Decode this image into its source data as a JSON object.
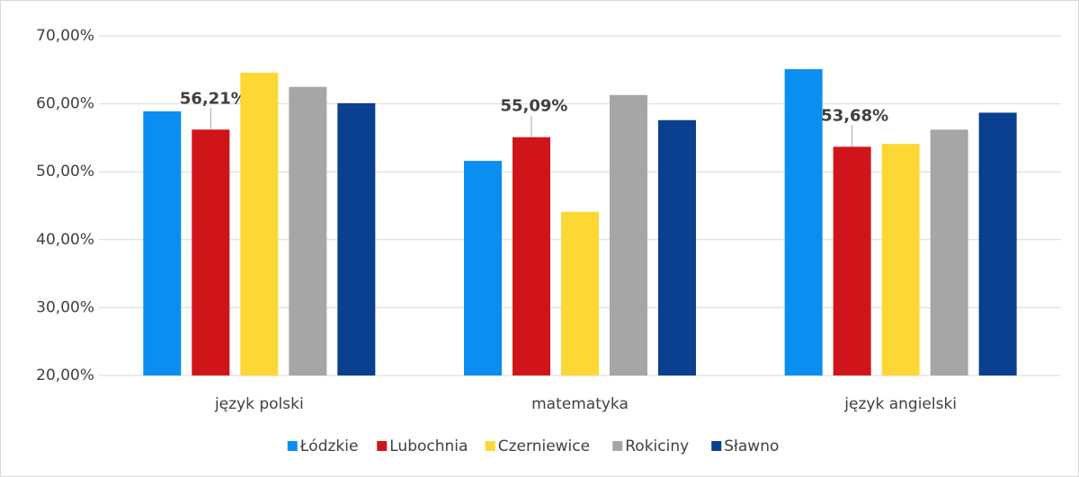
{
  "chart_data": {
    "type": "bar",
    "categories": [
      "język polski",
      "matematyka",
      "język angielski"
    ],
    "series": [
      {
        "name": "Łódzkie",
        "color": "#0a8ef0",
        "values": [
          58.9,
          51.6,
          65.1
        ]
      },
      {
        "name": "Lubochnia",
        "color": "#d0151a",
        "values": [
          56.21,
          55.09,
          53.68
        ],
        "value_labels": [
          "56,21%",
          "55,09%",
          "53,68%"
        ]
      },
      {
        "name": "Czerniewice",
        "color": "#fdd835",
        "values": [
          64.6,
          44.1,
          54.1
        ]
      },
      {
        "name": "Rokiciny",
        "color": "#a6a6a6",
        "values": [
          62.5,
          61.3,
          56.2
        ]
      },
      {
        "name": "Sławno",
        "color": "#0b3f8f",
        "values": [
          60.1,
          57.6,
          58.7
        ]
      }
    ],
    "ylim": [
      20,
      70
    ],
    "yticks": [
      {
        "value": 20,
        "label": "20,00%"
      },
      {
        "value": 30,
        "label": "30,00%"
      },
      {
        "value": 40,
        "label": "40,00%"
      },
      {
        "value": 50,
        "label": "50,00%"
      },
      {
        "value": 60,
        "label": "60,00%"
      },
      {
        "value": 70,
        "label": "70,00%"
      }
    ],
    "grid": true,
    "legend": "bottom"
  }
}
